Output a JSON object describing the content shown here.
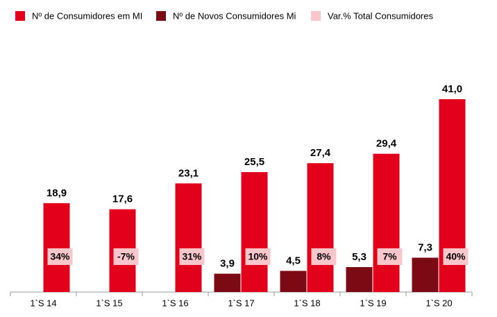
{
  "chart_data": {
    "type": "bar",
    "categories": [
      "1`S 14",
      "1`S 15",
      "1`S 16",
      "1`S 17",
      "1`S 18",
      "1`S 19",
      "1`S 20"
    ],
    "series": [
      {
        "name": "Nº de Consumidores em MI",
        "color": "#e2001a",
        "values": [
          18.9,
          17.6,
          23.1,
          25.5,
          27.4,
          29.4,
          41.0
        ],
        "value_labels": [
          "18,9",
          "17,6",
          "23,1",
          "25,5",
          "27,4",
          "29,4",
          "41,0"
        ]
      },
      {
        "name": "Nº de Novos Consumidores Mi",
        "color": "#7b0a14",
        "values": [
          null,
          null,
          null,
          3.9,
          4.5,
          5.3,
          7.3
        ],
        "value_labels": [
          null,
          null,
          null,
          "3,9",
          "4,5",
          "5,3",
          "7,3"
        ]
      },
      {
        "name": "Var.% Total Consumidores",
        "color": "#f9c6cb",
        "values": [
          34,
          -7,
          31,
          10,
          8,
          7,
          40
        ],
        "value_labels": [
          "34%",
          "-7%",
          "31%",
          "10%",
          "8%",
          "7%",
          "40%"
        ]
      }
    ],
    "ylim": [
      0,
      41
    ]
  }
}
